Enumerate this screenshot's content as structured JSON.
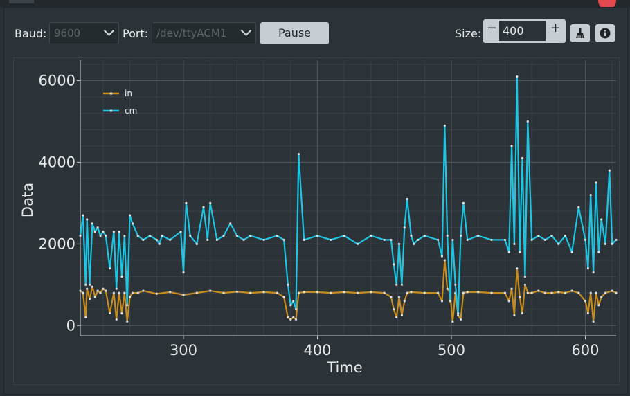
{
  "toolbar": {
    "baud_label": "Baud:",
    "baud_value": "9600",
    "port_label": "Port:",
    "port_value": "/dev/ttyACM1",
    "pause_label": "Pause",
    "size_label": "Size:",
    "size_value": "400",
    "minus_label": "−",
    "plus_label": "+"
  },
  "colors": {
    "series_in": "#c88d1f",
    "series_cm": "#1ec4e2",
    "marker": "#d9e0e3",
    "grid_major": "#4f585d",
    "grid_minor": "#3a4247"
  },
  "icons": {
    "clear": "broom-icon",
    "info": "info-icon"
  },
  "chart_data": {
    "type": "line",
    "xlabel": "Time",
    "ylabel": "Data",
    "xlim": [
      223,
      623
    ],
    "ylim": [
      -250,
      6500
    ],
    "xticks": [
      300,
      400,
      500,
      600
    ],
    "yticks": [
      0,
      2000,
      4000,
      6000
    ],
    "grid": true,
    "legend": "top-left",
    "series": [
      {
        "name": "in",
        "color": "#c88d1f",
        "x": [
          223,
          225,
          227,
          228,
          230,
          232,
          234,
          236,
          238,
          240,
          242,
          245,
          248,
          250,
          252,
          254,
          256,
          258,
          260,
          262,
          266,
          270,
          280,
          290,
          300,
          310,
          320,
          330,
          340,
          350,
          360,
          370,
          375,
          378,
          380,
          382,
          384,
          386,
          390,
          400,
          410,
          420,
          430,
          440,
          450,
          455,
          457,
          459,
          461,
          463,
          465,
          467,
          470,
          480,
          490,
          493,
          495,
          497,
          499,
          501,
          503,
          505,
          507,
          509,
          512,
          520,
          530,
          540,
          543,
          545,
          547,
          549,
          551,
          553,
          555,
          557,
          560,
          565,
          570,
          575,
          580,
          585,
          590,
          595,
          600,
          602,
          604,
          606,
          608,
          610,
          612,
          615,
          620,
          623
        ],
        "y": [
          850,
          800,
          200,
          900,
          650,
          950,
          700,
          850,
          800,
          900,
          850,
          300,
          800,
          150,
          800,
          300,
          800,
          100,
          700,
          800,
          800,
          850,
          780,
          820,
          750,
          800,
          850,
          800,
          830,
          800,
          820,
          800,
          700,
          200,
          150,
          200,
          150,
          800,
          820,
          820,
          800,
          820,
          800,
          820,
          800,
          700,
          400,
          200,
          700,
          250,
          600,
          800,
          820,
          800,
          800,
          600,
          1600,
          900,
          800,
          100,
          800,
          250,
          150,
          800,
          820,
          820,
          800,
          800,
          600,
          900,
          250,
          1400,
          700,
          300,
          1000,
          800,
          800,
          850,
          800,
          800,
          820,
          800,
          850,
          800,
          600,
          300,
          800,
          100,
          800,
          500,
          700,
          800,
          850,
          800
        ]
      },
      {
        "name": "cm",
        "color": "#1ec4e2",
        "x": [
          223,
          225,
          227,
          228,
          230,
          232,
          234,
          236,
          238,
          240,
          242,
          245,
          248,
          250,
          252,
          254,
          256,
          258,
          260,
          262,
          266,
          270,
          275,
          280,
          282,
          284,
          290,
          298,
          300,
          302,
          305,
          310,
          315,
          318,
          320,
          325,
          330,
          335,
          340,
          345,
          350,
          360,
          370,
          375,
          378,
          380,
          382,
          384,
          386,
          390,
          400,
          410,
          420,
          430,
          440,
          450,
          455,
          457,
          459,
          461,
          463,
          465,
          467,
          470,
          472,
          475,
          480,
          490,
          493,
          495,
          497,
          499,
          501,
          503,
          505,
          507,
          509,
          512,
          520,
          530,
          540,
          543,
          545,
          547,
          549,
          551,
          553,
          555,
          557,
          560,
          565,
          570,
          575,
          580,
          585,
          590,
          595,
          600,
          602,
          604,
          606,
          608,
          610,
          612,
          615,
          618,
          620,
          623
        ],
        "y": [
          2200,
          2700,
          1000,
          2600,
          1000,
          2500,
          2300,
          2400,
          2200,
          2300,
          2200,
          1400,
          2300,
          900,
          2300,
          1200,
          2200,
          500,
          2700,
          2500,
          2200,
          2100,
          2200,
          2100,
          2000,
          2200,
          2100,
          2300,
          1300,
          3000,
          2200,
          2000,
          2900,
          2100,
          3000,
          2100,
          2200,
          2500,
          2200,
          2100,
          2200,
          2100,
          2200,
          2100,
          1000,
          500,
          600,
          400,
          4200,
          2100,
          2200,
          2100,
          2200,
          2000,
          2200,
          2100,
          2100,
          1500,
          1000,
          2000,
          1000,
          2400,
          3100,
          2200,
          2000,
          2100,
          2200,
          2100,
          1700,
          4900,
          2200,
          600,
          2100,
          1000,
          300,
          2200,
          3000,
          2100,
          2200,
          2100,
          2100,
          1800,
          4400,
          2000,
          6100,
          1800,
          4100,
          1200,
          5000,
          2100,
          2200,
          2100,
          2200,
          2000,
          2200,
          1800,
          2900,
          2100,
          1400,
          3200,
          1300,
          3500,
          1800,
          2600,
          2000,
          3800,
          2000,
          2100
        ]
      }
    ]
  }
}
